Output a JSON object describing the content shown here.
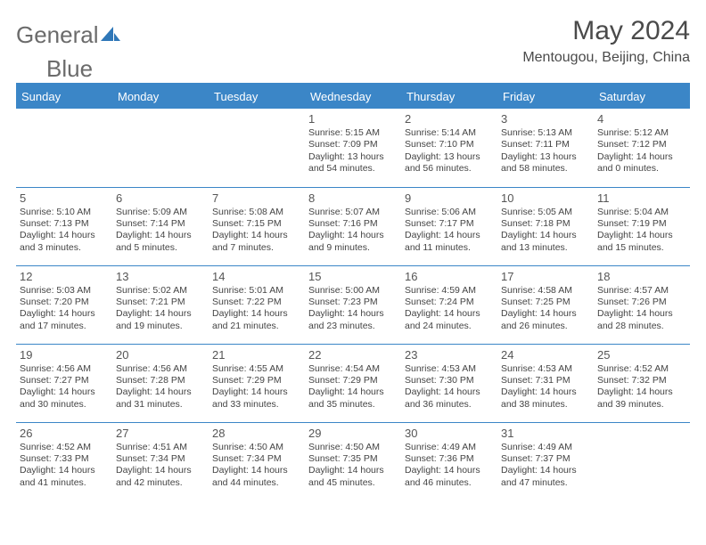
{
  "brand": {
    "part1": "General",
    "part2": "Blue",
    "text_color": "#6b6b6b",
    "icon_color": "#2f77b8"
  },
  "title": "May 2024",
  "subtitle": "Mentougou, Beijing, China",
  "colors": {
    "header_bg": "#3b86c7",
    "header_text": "#ffffff",
    "cell_border": "#3b86c7",
    "body_text": "#444444",
    "title_text": "#4a4a4a",
    "background": "#ffffff"
  },
  "fonts": {
    "title_size": 30,
    "subtitle_size": 16,
    "dayheader_size": 13,
    "daynum_size": 13,
    "info_size": 10.5
  },
  "day_headers": [
    "Sunday",
    "Monday",
    "Tuesday",
    "Wednesday",
    "Thursday",
    "Friday",
    "Saturday"
  ],
  "weeks": [
    [
      {
        "day": "",
        "sunrise": "",
        "sunset": "",
        "daylight": ""
      },
      {
        "day": "",
        "sunrise": "",
        "sunset": "",
        "daylight": ""
      },
      {
        "day": "",
        "sunrise": "",
        "sunset": "",
        "daylight": ""
      },
      {
        "day": "1",
        "sunrise": "Sunrise: 5:15 AM",
        "sunset": "Sunset: 7:09 PM",
        "daylight": "Daylight: 13 hours and 54 minutes."
      },
      {
        "day": "2",
        "sunrise": "Sunrise: 5:14 AM",
        "sunset": "Sunset: 7:10 PM",
        "daylight": "Daylight: 13 hours and 56 minutes."
      },
      {
        "day": "3",
        "sunrise": "Sunrise: 5:13 AM",
        "sunset": "Sunset: 7:11 PM",
        "daylight": "Daylight: 13 hours and 58 minutes."
      },
      {
        "day": "4",
        "sunrise": "Sunrise: 5:12 AM",
        "sunset": "Sunset: 7:12 PM",
        "daylight": "Daylight: 14 hours and 0 minutes."
      }
    ],
    [
      {
        "day": "5",
        "sunrise": "Sunrise: 5:10 AM",
        "sunset": "Sunset: 7:13 PM",
        "daylight": "Daylight: 14 hours and 3 minutes."
      },
      {
        "day": "6",
        "sunrise": "Sunrise: 5:09 AM",
        "sunset": "Sunset: 7:14 PM",
        "daylight": "Daylight: 14 hours and 5 minutes."
      },
      {
        "day": "7",
        "sunrise": "Sunrise: 5:08 AM",
        "sunset": "Sunset: 7:15 PM",
        "daylight": "Daylight: 14 hours and 7 minutes."
      },
      {
        "day": "8",
        "sunrise": "Sunrise: 5:07 AM",
        "sunset": "Sunset: 7:16 PM",
        "daylight": "Daylight: 14 hours and 9 minutes."
      },
      {
        "day": "9",
        "sunrise": "Sunrise: 5:06 AM",
        "sunset": "Sunset: 7:17 PM",
        "daylight": "Daylight: 14 hours and 11 minutes."
      },
      {
        "day": "10",
        "sunrise": "Sunrise: 5:05 AM",
        "sunset": "Sunset: 7:18 PM",
        "daylight": "Daylight: 14 hours and 13 minutes."
      },
      {
        "day": "11",
        "sunrise": "Sunrise: 5:04 AM",
        "sunset": "Sunset: 7:19 PM",
        "daylight": "Daylight: 14 hours and 15 minutes."
      }
    ],
    [
      {
        "day": "12",
        "sunrise": "Sunrise: 5:03 AM",
        "sunset": "Sunset: 7:20 PM",
        "daylight": "Daylight: 14 hours and 17 minutes."
      },
      {
        "day": "13",
        "sunrise": "Sunrise: 5:02 AM",
        "sunset": "Sunset: 7:21 PM",
        "daylight": "Daylight: 14 hours and 19 minutes."
      },
      {
        "day": "14",
        "sunrise": "Sunrise: 5:01 AM",
        "sunset": "Sunset: 7:22 PM",
        "daylight": "Daylight: 14 hours and 21 minutes."
      },
      {
        "day": "15",
        "sunrise": "Sunrise: 5:00 AM",
        "sunset": "Sunset: 7:23 PM",
        "daylight": "Daylight: 14 hours and 23 minutes."
      },
      {
        "day": "16",
        "sunrise": "Sunrise: 4:59 AM",
        "sunset": "Sunset: 7:24 PM",
        "daylight": "Daylight: 14 hours and 24 minutes."
      },
      {
        "day": "17",
        "sunrise": "Sunrise: 4:58 AM",
        "sunset": "Sunset: 7:25 PM",
        "daylight": "Daylight: 14 hours and 26 minutes."
      },
      {
        "day": "18",
        "sunrise": "Sunrise: 4:57 AM",
        "sunset": "Sunset: 7:26 PM",
        "daylight": "Daylight: 14 hours and 28 minutes."
      }
    ],
    [
      {
        "day": "19",
        "sunrise": "Sunrise: 4:56 AM",
        "sunset": "Sunset: 7:27 PM",
        "daylight": "Daylight: 14 hours and 30 minutes."
      },
      {
        "day": "20",
        "sunrise": "Sunrise: 4:56 AM",
        "sunset": "Sunset: 7:28 PM",
        "daylight": "Daylight: 14 hours and 31 minutes."
      },
      {
        "day": "21",
        "sunrise": "Sunrise: 4:55 AM",
        "sunset": "Sunset: 7:29 PM",
        "daylight": "Daylight: 14 hours and 33 minutes."
      },
      {
        "day": "22",
        "sunrise": "Sunrise: 4:54 AM",
        "sunset": "Sunset: 7:29 PM",
        "daylight": "Daylight: 14 hours and 35 minutes."
      },
      {
        "day": "23",
        "sunrise": "Sunrise: 4:53 AM",
        "sunset": "Sunset: 7:30 PM",
        "daylight": "Daylight: 14 hours and 36 minutes."
      },
      {
        "day": "24",
        "sunrise": "Sunrise: 4:53 AM",
        "sunset": "Sunset: 7:31 PM",
        "daylight": "Daylight: 14 hours and 38 minutes."
      },
      {
        "day": "25",
        "sunrise": "Sunrise: 4:52 AM",
        "sunset": "Sunset: 7:32 PM",
        "daylight": "Daylight: 14 hours and 39 minutes."
      }
    ],
    [
      {
        "day": "26",
        "sunrise": "Sunrise: 4:52 AM",
        "sunset": "Sunset: 7:33 PM",
        "daylight": "Daylight: 14 hours and 41 minutes."
      },
      {
        "day": "27",
        "sunrise": "Sunrise: 4:51 AM",
        "sunset": "Sunset: 7:34 PM",
        "daylight": "Daylight: 14 hours and 42 minutes."
      },
      {
        "day": "28",
        "sunrise": "Sunrise: 4:50 AM",
        "sunset": "Sunset: 7:34 PM",
        "daylight": "Daylight: 14 hours and 44 minutes."
      },
      {
        "day": "29",
        "sunrise": "Sunrise: 4:50 AM",
        "sunset": "Sunset: 7:35 PM",
        "daylight": "Daylight: 14 hours and 45 minutes."
      },
      {
        "day": "30",
        "sunrise": "Sunrise: 4:49 AM",
        "sunset": "Sunset: 7:36 PM",
        "daylight": "Daylight: 14 hours and 46 minutes."
      },
      {
        "day": "31",
        "sunrise": "Sunrise: 4:49 AM",
        "sunset": "Sunset: 7:37 PM",
        "daylight": "Daylight: 14 hours and 47 minutes."
      },
      {
        "day": "",
        "sunrise": "",
        "sunset": "",
        "daylight": ""
      }
    ]
  ]
}
